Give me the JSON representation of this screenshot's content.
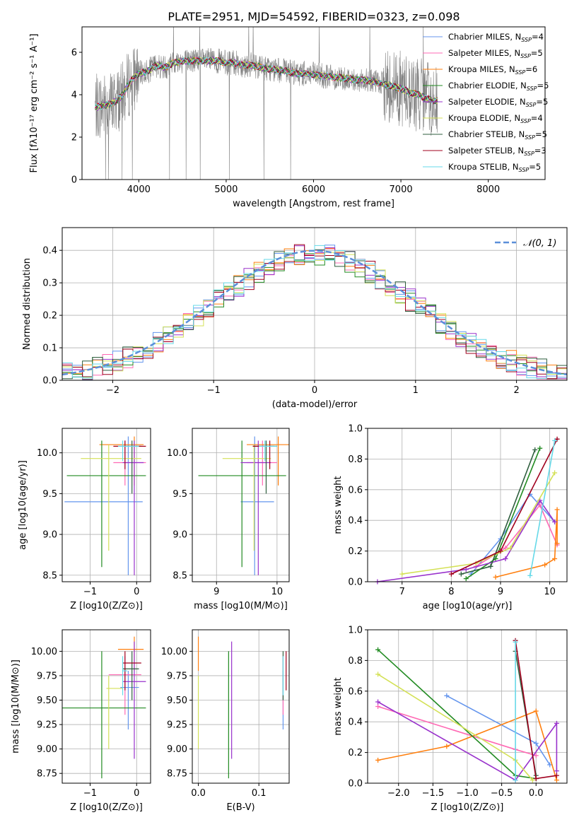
{
  "figure": {
    "title": "PLATE=2951, MJD=54592, FIBERID=0323, z=0.098"
  },
  "colors": {
    "Chabrier MILES": "#6495ed",
    "Salpeter MILES": "#ff69b4",
    "Kroupa MILES": "#ff7f0e",
    "Chabrier ELODIE": "#228b22",
    "Salpeter ELODIE": "#9932cc",
    "Kroupa ELODIE": "#d4e157",
    "Chabrier STELIB": "#2e5e3e",
    "Salpeter STELIB": "#a0001e",
    "Kroupa STELIB": "#66d9e8",
    "data": "#808080",
    "normal": "#5b8fd9"
  },
  "chart_data": [
    {
      "id": "spectrum",
      "type": "line",
      "xlabel": "wavelength [Angstrom, rest frame]",
      "ylabel": "Flux [fλ10⁻¹⁷ erg cm⁻² s⁻¹ A⁻¹]",
      "xlim": [
        3350,
        8650
      ],
      "ylim": [
        0,
        7.2
      ],
      "xticks": [
        4000,
        5000,
        6000,
        7000,
        8000
      ],
      "yticks": [
        0,
        2,
        4,
        6
      ],
      "continuum_x": [
        3500,
        3600,
        3700,
        3800,
        3900,
        4000,
        4100,
        4200,
        4300,
        4400,
        4500,
        4600,
        4700,
        4800,
        4900,
        5000,
        5100,
        5200,
        5300,
        5400,
        5500,
        5600,
        5700,
        5800,
        5900,
        6000,
        6100,
        6200,
        6300,
        6400,
        6500,
        6600,
        6700,
        6800,
        6900,
        7000,
        7100,
        7200,
        7300,
        7400
      ],
      "continuum_y": [
        3.4,
        3.5,
        3.6,
        3.9,
        4.6,
        5.0,
        5.1,
        5.4,
        5.3,
        5.5,
        5.6,
        5.6,
        5.6,
        5.6,
        5.6,
        5.5,
        5.5,
        5.4,
        5.4,
        5.3,
        5.2,
        5.15,
        5.1,
        5.0,
        5.0,
        4.95,
        4.9,
        4.85,
        4.8,
        4.75,
        4.7,
        4.7,
        4.6,
        4.5,
        4.4,
        4.3,
        4.1,
        4.0,
        3.8,
        3.7
      ],
      "legend": [
        {
          "label": "Chabrier MILES, N",
          "n": "4"
        },
        {
          "label": "Salpeter MILES, N",
          "n": "5"
        },
        {
          "label": "Kroupa MILES, N",
          "n": "6"
        },
        {
          "label": "Chabrier ELODIE, N",
          "n": "5"
        },
        {
          "label": "Salpeter ELODIE, N",
          "n": "5"
        },
        {
          "label": "Kroupa ELODIE, N",
          "n": "4"
        },
        {
          "label": "Chabrier STELIB, N",
          "n": "5"
        },
        {
          "label": "Salpeter STELIB, N",
          "n": "3"
        },
        {
          "label": "Kroupa STELIB, N",
          "n": "5"
        }
      ],
      "legend_placement": "upper right"
    },
    {
      "id": "residuals",
      "type": "histogram",
      "xlabel": "(data-model)/error",
      "ylabel": "Normed distribution",
      "xlim": [
        -2.5,
        2.5
      ],
      "ylim": [
        0,
        0.47
      ],
      "xticks": [
        -2,
        -1,
        0,
        1,
        2
      ],
      "yticks": [
        0.0,
        0.1,
        0.2,
        0.3,
        0.4
      ],
      "grid": true,
      "legend": "𝒩(0, 1)",
      "bin_width": 0.1,
      "bin_start": -2.5
    },
    {
      "id": "age_vs_Z",
      "type": "errorbar",
      "xlabel": "Z [log10(Z/Z⊙)]",
      "ylabel": "age  [log10(age/yr)]",
      "xlim": [
        -1.6,
        0.3
      ],
      "ylim": [
        8.42,
        10.3
      ],
      "xticks": [
        -1,
        0
      ],
      "yticks": [
        8.5,
        9.0,
        9.5,
        10.0
      ],
      "grid": true
    },
    {
      "id": "age_vs_mass",
      "type": "errorbar",
      "xlabel": "mass [log10(M/M⊙)]",
      "ylabel": "",
      "xlim": [
        8.6,
        10.2
      ],
      "ylim": [
        8.42,
        10.3
      ],
      "xticks": [
        9,
        10
      ],
      "yticks": [
        8.5,
        9.0,
        9.5,
        10.0
      ],
      "grid": true
    },
    {
      "id": "massweight_vs_age",
      "type": "line",
      "xlabel": "age  [log10(age/yr)]",
      "ylabel": "mass weight",
      "xlim": [
        6.3,
        10.35
      ],
      "ylim": [
        0,
        1.0
      ],
      "xticks": [
        7,
        8,
        9,
        10
      ],
      "yticks": [
        0.0,
        0.2,
        0.4,
        0.6,
        0.8,
        1.0
      ],
      "grid": true
    },
    {
      "id": "mass_vs_Z",
      "type": "errorbar",
      "xlabel": "Z [log10(Z/Z⊙)]",
      "ylabel": "mass [log10(M/M⊙)]",
      "xlim": [
        -1.6,
        0.3
      ],
      "ylim": [
        8.65,
        10.22
      ],
      "xticks": [
        -1,
        0
      ],
      "yticks": [
        8.75,
        9.0,
        9.25,
        9.5,
        9.75,
        10.0
      ],
      "grid": true
    },
    {
      "id": "mass_vs_ebv",
      "type": "errorbar",
      "xlabel": "E(B-V)",
      "ylabel": "",
      "xlim": [
        -0.01,
        0.15
      ],
      "ylim": [
        8.65,
        10.22
      ],
      "xticks": [
        0.0,
        0.1
      ],
      "yticks": [
        8.75,
        9.0,
        9.25,
        9.5,
        9.75,
        10.0
      ],
      "grid": true
    },
    {
      "id": "massweight_vs_Z",
      "type": "line",
      "xlabel": "Z [log10(Z/Z⊙)]",
      "ylabel": "mass weight",
      "xlim": [
        -2.45,
        0.45
      ],
      "ylim": [
        0,
        1.0
      ],
      "xticks": [
        -2.0,
        -1.5,
        -1.0,
        -0.5,
        0.0
      ],
      "yticks": [
        0.0,
        0.2,
        0.4,
        0.6,
        0.8,
        1.0
      ],
      "grid": true
    }
  ],
  "series": {
    "Chabrier MILES": {
      "age": 9.4,
      "Z": -0.18,
      "mass": 9.63,
      "ebv": 0.14,
      "age_err": [
        [
          -1.55,
          0.13
        ],
        [
          8.5,
          10.2
        ]
      ],
      "mass_err": [
        [
          -0.35,
          0.05
        ],
        [
          9.2,
          9.8
        ]
      ],
      "mass_x_err": [
        9.4,
        9.95
      ],
      "w_age": [
        [
          8.4,
          0.05
        ],
        [
          9.0,
          0.28
        ],
        [
          9.6,
          0.57
        ],
        [
          10.1,
          0.39
        ]
      ],
      "w_Z": [
        [
          -1.3,
          0.57
        ],
        [
          0.0,
          0.26
        ],
        [
          0.2,
          0.12
        ]
      ]
    },
    "Salpeter MILES": {
      "age": 9.88,
      "Z": -0.25,
      "mass": 9.76,
      "ebv": 0.14,
      "age_err": [
        [
          -0.5,
          0.2
        ],
        [
          9.6,
          10.15
        ]
      ],
      "mass_err": [
        [
          -0.6,
          0.1
        ],
        [
          9.35,
          9.95
        ]
      ],
      "mass_x_err": [
        9.5,
        10.0
      ],
      "w_age": [
        [
          8.5,
          0.1
        ],
        [
          9.1,
          0.22
        ],
        [
          9.8,
          0.5
        ],
        [
          10.15,
          0.24
        ]
      ],
      "w_Z": [
        [
          -2.3,
          0.5
        ],
        [
          -0.3,
          0.22
        ],
        [
          0.0,
          0.18
        ]
      ]
    },
    "Kroupa MILES": {
      "age": 10.1,
      "Z": -0.05,
      "mass": 10.02,
      "ebv": 0.0,
      "age_err": [
        [
          -0.8,
          0.15
        ],
        [
          9.6,
          10.2
        ]
      ],
      "mass_err": [
        [
          -0.4,
          0.15
        ],
        [
          9.8,
          10.15
        ]
      ],
      "mass_x_err": [
        9.5,
        10.2
      ],
      "w_age": [
        [
          8.9,
          0.03
        ],
        [
          9.9,
          0.11
        ],
        [
          10.1,
          0.15
        ],
        [
          10.15,
          0.47
        ],
        [
          10.15,
          0.25
        ]
      ],
      "w_Z": [
        [
          -2.3,
          0.15
        ],
        [
          -1.3,
          0.24
        ],
        [
          0.0,
          0.47
        ],
        [
          0.3,
          0.02
        ]
      ]
    },
    "Chabrier ELODIE": {
      "age": 9.72,
      "Z": -0.75,
      "mass": 9.42,
      "ebv": 0.05,
      "age_err": [
        [
          -1.5,
          0.2
        ],
        [
          8.6,
          10.15
        ]
      ],
      "mass_err": [
        [
          -1.6,
          0.2
        ],
        [
          8.7,
          10.0
        ]
      ],
      "mass_x_err": [
        8.7,
        10.15
      ],
      "w_age": [
        [
          8.3,
          0.02
        ],
        [
          8.9,
          0.15
        ],
        [
          9.8,
          0.87
        ]
      ],
      "w_Z": [
        [
          -2.3,
          0.87
        ],
        [
          -0.3,
          0.05
        ],
        [
          0.0,
          0.03
        ]
      ]
    },
    "Salpeter ELODIE": {
      "age": 9.88,
      "Z": -0.05,
      "mass": 9.69,
      "ebv": 0.055,
      "age_err": [
        [
          -0.3,
          0.15
        ],
        [
          8.5,
          10.15
        ]
      ],
      "mass_err": [
        [
          -0.3,
          0.2
        ],
        [
          8.9,
          10.1
        ]
      ],
      "mass_x_err": [
        9.4,
        9.9
      ],
      "w_age": [
        [
          6.5,
          0.0
        ],
        [
          8.3,
          0.08
        ],
        [
          9.1,
          0.15
        ],
        [
          9.8,
          0.53
        ],
        [
          10.1,
          0.39
        ]
      ],
      "w_Z": [
        [
          -2.3,
          0.53
        ],
        [
          -0.3,
          0.02
        ],
        [
          0.3,
          0.39
        ],
        [
          0.3,
          0.08
        ]
      ]
    },
    "Kroupa ELODIE": {
      "age": 9.93,
      "Z": -0.6,
      "mass": 9.62,
      "ebv": 0.0,
      "age_err": [
        [
          -1.2,
          0.1
        ],
        [
          8.8,
          10.1
        ]
      ],
      "mass_err": [
        [
          -0.65,
          -0.3
        ],
        [
          9.0,
          9.75
        ]
      ],
      "mass_x_err": [
        9.1,
        9.9
      ],
      "w_age": [
        [
          7.0,
          0.05
        ],
        [
          8.5,
          0.12
        ],
        [
          9.2,
          0.22
        ],
        [
          10.1,
          0.71
        ]
      ],
      "w_Z": [
        [
          -2.3,
          0.71
        ],
        [
          -0.3,
          0.15
        ],
        [
          -0.05,
          0.02
        ]
      ]
    },
    "Chabrier STELIB": {
      "age": 10.08,
      "Z": -0.1,
      "mass": 9.82,
      "ebv": 0.14,
      "age_err": [
        [
          -0.3,
          0.1
        ],
        [
          9.5,
          10.15
        ]
      ],
      "mass_err": [
        [
          -0.3,
          0.05
        ],
        [
          9.5,
          10.0
        ]
      ],
      "mass_x_err": [
        9.6,
        10.0
      ],
      "w_age": [
        [
          8.2,
          0.05
        ],
        [
          8.8,
          0.1
        ],
        [
          9.7,
          0.86
        ]
      ],
      "w_Z": [
        [
          -0.3,
          0.86
        ],
        [
          0.0,
          0.05
        ]
      ]
    },
    "Salpeter STELIB": {
      "age": 10.08,
      "Z": -0.25,
      "mass": 9.88,
      "ebv": 0.145,
      "age_err": [
        [
          -0.5,
          0.2
        ],
        [
          9.8,
          10.15
        ]
      ],
      "mass_err": [
        [
          -0.3,
          0.1
        ],
        [
          9.6,
          10.0
        ]
      ],
      "mass_x_err": [
        9.6,
        9.95
      ],
      "w_age": [
        [
          8.0,
          0.05
        ],
        [
          9.0,
          0.2
        ],
        [
          10.15,
          0.93
        ]
      ],
      "w_Z": [
        [
          -0.3,
          0.93
        ],
        [
          0.0,
          0.03
        ],
        [
          0.3,
          0.05
        ]
      ]
    },
    "Kroupa STELIB": {
      "age": 10.08,
      "Z": -0.3,
      "mass": 9.8,
      "ebv": 0.14,
      "age_err": [
        [
          -0.4,
          0.05
        ],
        [
          9.9,
          10.15
        ]
      ],
      "mass_err": [
        [
          -0.3,
          -0.2
        ],
        [
          9.55,
          9.95
        ]
      ],
      "mass_x_err": [
        9.7,
        10.0
      ],
      "w_age": [
        [
          9.6,
          0.04
        ],
        [
          10.1,
          0.92
        ]
      ],
      "w_Z": [
        [
          -0.3,
          0.92
        ],
        [
          -0.3,
          0.02
        ]
      ]
    }
  }
}
